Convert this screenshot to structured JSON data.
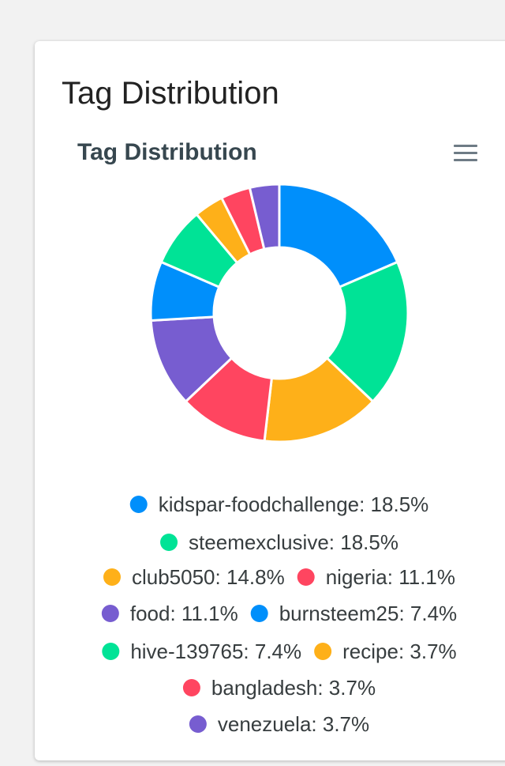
{
  "card": {
    "title": "Tag Distribution"
  },
  "chart_data": {
    "type": "pie",
    "variant": "donut",
    "title": "Tag Distribution",
    "categories": [
      "kidspar-foodchallenge",
      "steemexclusive",
      "club5050",
      "nigeria",
      "food",
      "burnsteem25",
      "hive-139765",
      "recipe",
      "bangladesh",
      "venezuela"
    ],
    "values": [
      18.5,
      18.5,
      14.8,
      11.1,
      11.1,
      7.4,
      7.4,
      3.7,
      3.7,
      3.7
    ],
    "labels": [
      "kidspar-foodchallenge: 18.5%",
      "steemexclusive: 18.5%",
      "club5050: 14.8%",
      "nigeria: 11.1%",
      "food: 11.1%",
      "burnsteem25: 7.4%",
      "hive-139765: 7.4%",
      "recipe: 3.7%",
      "bangladesh: 3.7%",
      "venezuela: 3.7%"
    ],
    "colors": [
      "#008ffb",
      "#00e396",
      "#feb019",
      "#ff4560",
      "#775dd0",
      "#008ffb",
      "#00e396",
      "#feb019",
      "#ff4560",
      "#775dd0"
    ],
    "legend_position": "bottom"
  },
  "toolbar": {
    "menu_icon": "hamburger-menu-icon"
  }
}
